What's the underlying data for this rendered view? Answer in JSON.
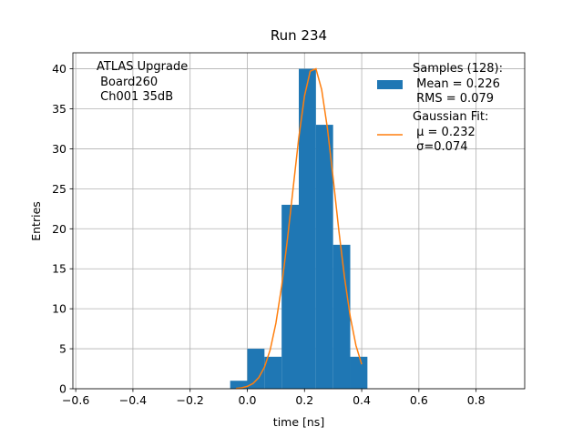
{
  "chart_data": {
    "type": "histogram",
    "title": "Run 234",
    "xlabel": "time [ns]",
    "ylabel": "Entries",
    "annotation": [
      "ATLAS Upgrade",
      " Board260",
      " Ch001 35dB"
    ],
    "series": [
      {
        "type": "histogram",
        "name": "Samples (128):\n Mean = 0.226\n RMS = 0.079",
        "color": "#1f77b4",
        "bins": [
          -0.06,
          0,
          0.06,
          0.12,
          0.18,
          0.24,
          0.3,
          0.36,
          0.42
        ],
        "values": [
          1,
          5,
          4,
          23,
          40,
          33,
          18,
          4
        ]
      },
      {
        "type": "line",
        "name": "Gaussian Fit:\n μ = 0.232\n σ=0.074",
        "color": "#ff7f0e",
        "x": [
          -0.04,
          -0.02,
          0.0,
          0.02,
          0.04,
          0.06,
          0.08,
          0.1,
          0.12,
          0.14,
          0.16,
          0.18,
          0.2,
          0.22,
          0.24,
          0.26,
          0.28,
          0.3,
          0.32,
          0.34,
          0.36,
          0.38,
          0.4
        ],
        "values": [
          0.05,
          0.12,
          0.3,
          0.66,
          1.39,
          2.7,
          4.87,
          8.19,
          12.8,
          18.6,
          25.0,
          31.4,
          36.6,
          39.7,
          40.0,
          37.4,
          32.6,
          26.4,
          19.8,
          13.9,
          9.0,
          5.4,
          3.05
        ]
      }
    ],
    "xlim": [
      -0.61,
      0.97
    ],
    "ylim": [
      0,
      42
    ],
    "xticks": [
      {
        "value": -0.6,
        "label": "−0.6"
      },
      {
        "value": -0.4,
        "label": "−0.4"
      },
      {
        "value": -0.2,
        "label": "−0.2"
      },
      {
        "value": 0,
        "label": "0.0"
      },
      0.2,
      0.4,
      0.6,
      0.8
    ],
    "yticks": [
      0,
      5,
      10,
      15,
      20,
      25,
      30,
      35,
      40
    ],
    "grid": true,
    "legend": "upper right"
  }
}
